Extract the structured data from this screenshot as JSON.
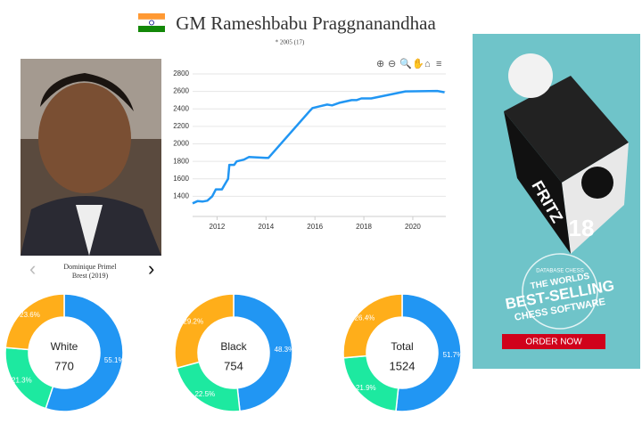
{
  "header": {
    "title": "GM Rameshbabu Praggnanandhaa",
    "subtitle": "* 2005 (17)"
  },
  "photo": {
    "caption": "Dominique Primel",
    "caption_place": "Brest (2019)"
  },
  "ad": {
    "brand": "FRITZ",
    "version": "18",
    "badge_top": "DATABASE CHESS",
    "line1": "THE WORLDS",
    "line2": "BEST-SELLING",
    "line3": "CHESS SOFTWARE",
    "button": "ORDER NOW"
  },
  "chart_data": [
    {
      "type": "line",
      "color": "#2196f3",
      "xlim": [
        2011,
        2021.35
      ],
      "ylim": [
        1170,
        2800
      ],
      "xticks": [
        2012,
        2014,
        2016,
        2018,
        2020
      ],
      "yticks": [
        1400,
        1600,
        1800,
        2000,
        2200,
        2400,
        2600,
        2800
      ],
      "grid": true,
      "x": [
        2011.0,
        2011.2,
        2011.4,
        2011.6,
        2011.8,
        2011.95,
        2012.2,
        2012.3,
        2012.45,
        2012.5,
        2012.7,
        2012.8,
        2013.1,
        2013.3,
        2014.0,
        2014.1,
        2015.8,
        2015.9,
        2016.2,
        2016.5,
        2016.7,
        2017.0,
        2017.5,
        2017.7,
        2017.9,
        2018.3,
        2019.7,
        2021.0,
        2021.3
      ],
      "values": [
        1320,
        1345,
        1340,
        1350,
        1400,
        1480,
        1480,
        1530,
        1600,
        1760,
        1760,
        1800,
        1820,
        1850,
        1840,
        1840,
        2380,
        2410,
        2430,
        2450,
        2440,
        2470,
        2500,
        2500,
        2520,
        2520,
        2600,
        2605,
        2590
      ]
    },
    {
      "type": "donut",
      "center_label": "White",
      "center_value": 770,
      "colors": [
        "#2196f3",
        "#1de9a0",
        "#ffae1a"
      ],
      "values": [
        55.1,
        21.3,
        23.6
      ],
      "value_labels": [
        "55.1%",
        "21.3%",
        "23.6%"
      ]
    },
    {
      "type": "donut",
      "center_label": "Black",
      "center_value": 754,
      "colors": [
        "#2196f3",
        "#1de9a0",
        "#ffae1a"
      ],
      "values": [
        48.3,
        22.5,
        29.2
      ],
      "value_labels": [
        "48.3%",
        "22.5%",
        "29.2%"
      ]
    },
    {
      "type": "donut",
      "center_label": "Total",
      "center_value": 1524,
      "colors": [
        "#2196f3",
        "#1de9a0",
        "#ffae1a"
      ],
      "values": [
        51.7,
        21.9,
        26.4
      ],
      "value_labels": [
        "51.7%",
        "21.9%",
        "26.4%"
      ]
    }
  ]
}
